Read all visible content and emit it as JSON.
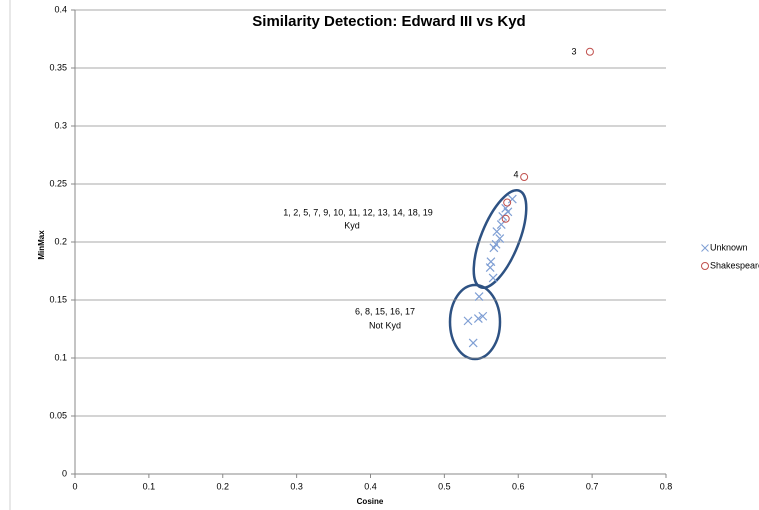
{
  "chart_data": {
    "type": "scatter",
    "title": "Similarity Detection: Edward III vs Kyd",
    "x_label": "Cosine",
    "y_label": "MinMax",
    "xlim": [
      0,
      0.8
    ],
    "xticks": [
      0,
      0.1,
      0.2,
      0.3,
      0.4,
      0.5,
      0.6,
      0.7,
      0.8
    ],
    "ylim": [
      0,
      0.4
    ],
    "yticks": [
      0,
      0.05,
      0.1,
      0.15,
      0.2,
      0.25,
      0.3,
      0.35,
      0.4
    ],
    "grid": true,
    "legend": "right",
    "series": [
      {
        "name": "Unknown",
        "color": "#7f9fd4",
        "marker": "x",
        "x": [
          0.592,
          0.583,
          0.579,
          0.577,
          0.571,
          0.575,
          0.57,
          0.567,
          0.563,
          0.562,
          0.566,
          0.586,
          0.547,
          0.532,
          0.546,
          0.552,
          0.539
        ],
        "y": [
          0.237,
          0.229,
          0.222,
          0.215,
          0.209,
          0.203,
          0.198,
          0.195,
          0.183,
          0.178,
          0.169,
          0.226,
          0.153,
          0.132,
          0.134,
          0.136,
          0.113
        ]
      },
      {
        "name": "Shakespeare",
        "color": "#c0504d",
        "marker": "o",
        "x": [
          0.697,
          0.608,
          0.585,
          0.583
        ],
        "y": [
          0.364,
          0.256,
          0.234,
          0.22
        ]
      }
    ],
    "annotations": [
      "3",
      "4",
      "1, 2, 5, 7, 9, 10, 11, 12, 13, 14, 18, 19",
      "Kyd",
      "6, 8, 15, 16, 17",
      "Not Kyd"
    ]
  }
}
